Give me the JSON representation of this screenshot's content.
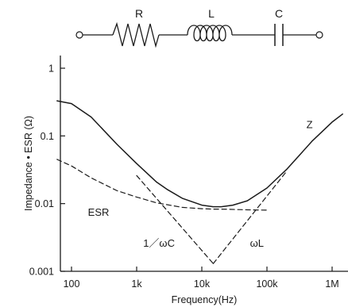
{
  "colors": {
    "ink": "#1a1a1a",
    "background": "#ffffff"
  },
  "circuit": {
    "components": [
      {
        "type": "resistor",
        "label": "R"
      },
      {
        "type": "inductor",
        "label": "L"
      },
      {
        "type": "capacitor",
        "label": "C"
      }
    ]
  },
  "chart_data": {
    "type": "line",
    "title": "",
    "xlabel": "Frequency(Hz)",
    "ylabel": "Impedance • ESR (Ω)",
    "xscale": "log",
    "yscale": "log",
    "xlim": [
      100,
      1000000
    ],
    "ylim": [
      0.001,
      1
    ],
    "grid": false,
    "x_tick_values": [
      100,
      1000,
      10000,
      100000,
      1000000
    ],
    "x_tick_labels": [
      "100",
      "1k",
      "10k",
      "100k",
      "1M"
    ],
    "y_tick_values": [
      1,
      0.1,
      0.01,
      0.001
    ],
    "y_tick_labels": [
      "1",
      "0.1",
      "0.01",
      "0.001"
    ],
    "series": [
      {
        "name": "Z",
        "style": "solid",
        "x": [
          60,
          100,
          200,
          500,
          1000,
          2000,
          3000,
          5000,
          10000,
          15000,
          20000,
          30000,
          50000,
          100000,
          200000,
          500000,
          1000000,
          1450000
        ],
        "y": [
          0.33,
          0.3,
          0.19,
          0.075,
          0.039,
          0.021,
          0.016,
          0.012,
          0.0095,
          0.009,
          0.009,
          0.0095,
          0.011,
          0.017,
          0.032,
          0.085,
          0.16,
          0.21
        ]
      },
      {
        "name": "ESR",
        "style": "dashed",
        "x": [
          60,
          100,
          200,
          500,
          1000,
          2000,
          5000,
          10000,
          15000,
          20000,
          50000,
          100000
        ],
        "y": [
          0.045,
          0.036,
          0.024,
          0.0155,
          0.0125,
          0.0103,
          0.0088,
          0.0084,
          0.0083,
          0.0083,
          0.0081,
          0.008
        ]
      },
      {
        "name": "1/ωC",
        "style": "dashed",
        "x": [
          1000,
          15000
        ],
        "y": [
          0.026,
          0.0013
        ]
      },
      {
        "name": "ωL",
        "style": "dashed",
        "x": [
          15000,
          200000
        ],
        "y": [
          0.0013,
          0.03
        ]
      }
    ],
    "annotations": [
      {
        "text": "Z",
        "x": 450000,
        "y": 0.13
      },
      {
        "text": "ESR",
        "x": 260,
        "y": 0.0066
      },
      {
        "text": "1／ωC",
        "x": 2200,
        "y": 0.0023
      },
      {
        "text": "ωL",
        "x": 70000,
        "y": 0.0023
      }
    ]
  }
}
